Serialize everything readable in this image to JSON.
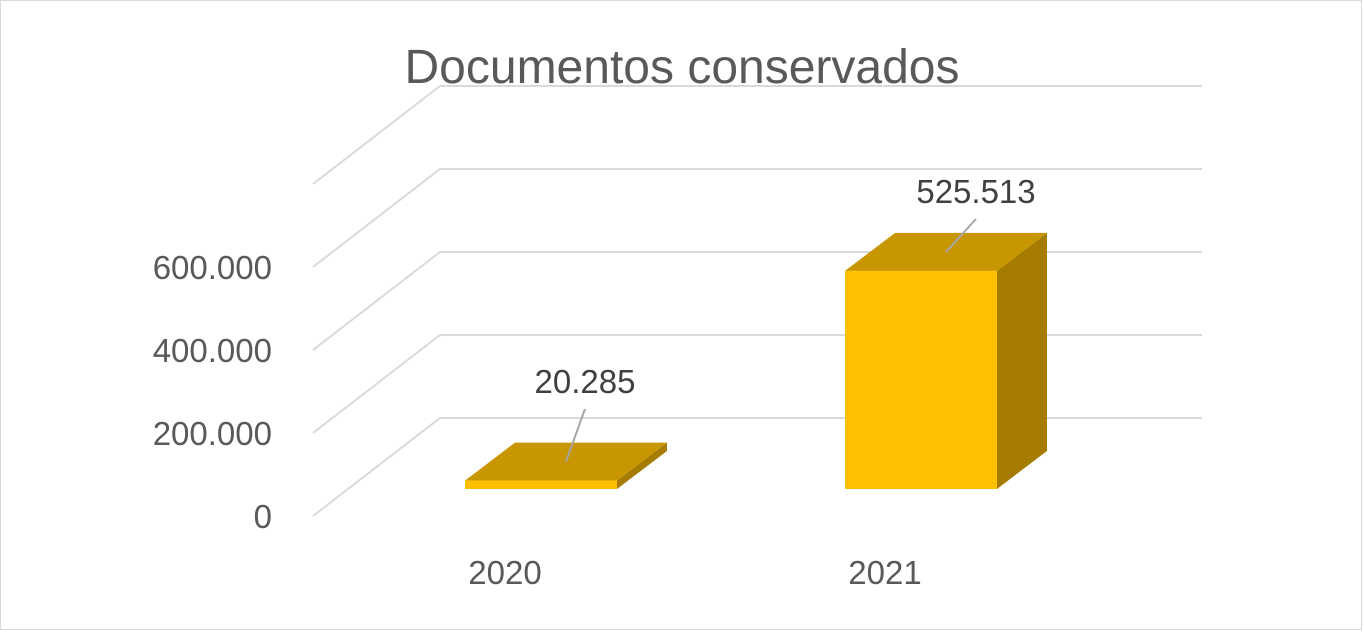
{
  "chart_data": {
    "type": "bar",
    "title": "Documentos conservados",
    "categories": [
      "2020",
      "2021"
    ],
    "values": [
      20285,
      525513
    ],
    "value_labels": [
      "20.285",
      "525.513"
    ],
    "y_ticks": [
      0,
      200000,
      400000,
      600000
    ],
    "y_tick_labels": [
      "0",
      "200.000",
      "400.000",
      "600.000"
    ],
    "ylim": [
      0,
      800000
    ],
    "grid": true,
    "legend": "none",
    "colors": {
      "front": "#FFC000",
      "top": "#C89600",
      "side": "#A67C00",
      "grid": "#d9d9d9",
      "leader": "#a6a6a6"
    }
  }
}
